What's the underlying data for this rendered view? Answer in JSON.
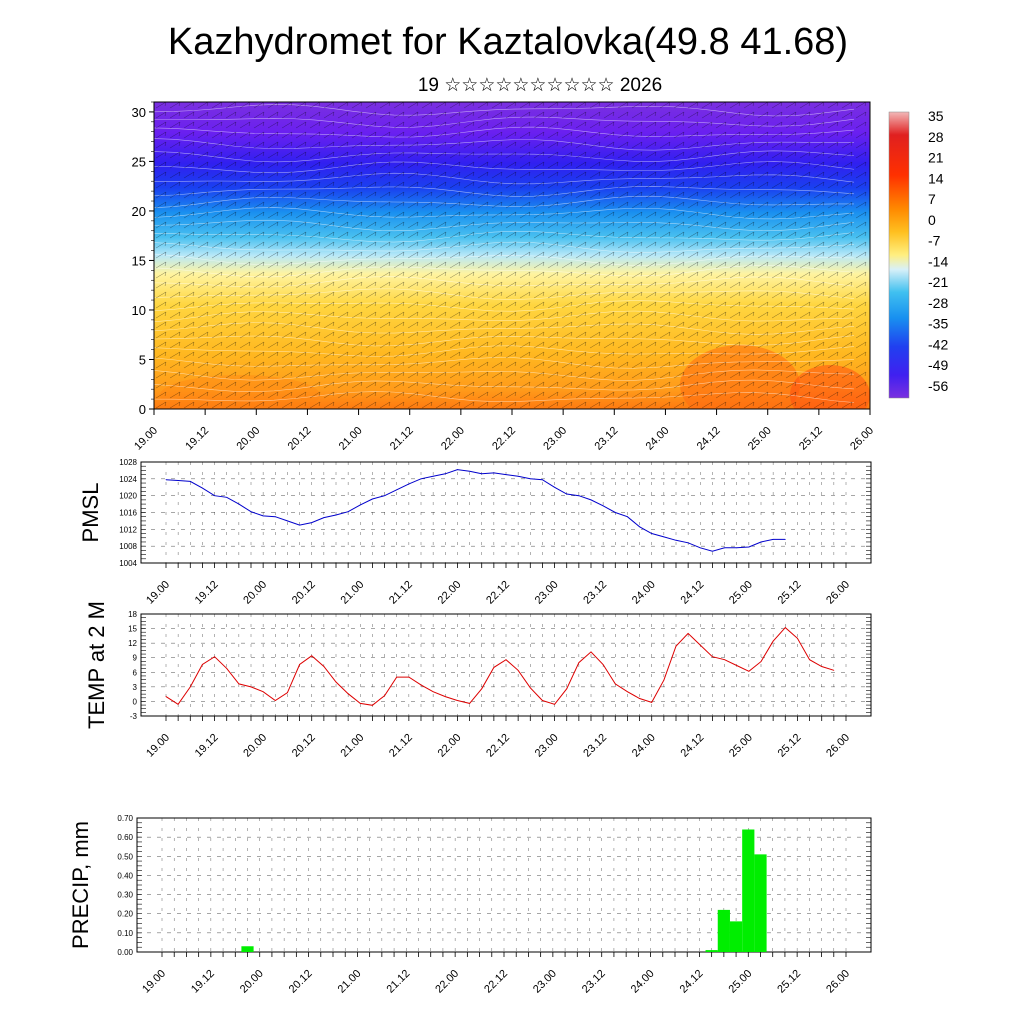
{
  "title": "Kazhydromet for Kaztalovka(49.8 41.68)",
  "subtitle": "19 ☆☆☆☆☆☆☆☆☆☆ 2026",
  "time_labels": [
    "19.00",
    "19.12",
    "20.00",
    "20.12",
    "21.00",
    "21.12",
    "22.00",
    "22.12",
    "23.00",
    "23.12",
    "24.00",
    "24.12",
    "25.00",
    "25.12",
    "26.00"
  ],
  "colors": {
    "pmsl_line": "#0000cc",
    "temp_line": "#dd0000",
    "precip_bar": "#00ee00"
  },
  "chart_data": [
    {
      "type": "heatmap",
      "name": "vertical-cross-section",
      "title": "",
      "ylabel": "",
      "y_ticks": [
        0,
        5,
        10,
        15,
        20,
        25,
        30
      ],
      "ylim": [
        0,
        31
      ],
      "x_ticks": [
        "19.00",
        "19.12",
        "20.00",
        "20.12",
        "21.00",
        "21.12",
        "22.00",
        "22.12",
        "23.00",
        "23.12",
        "24.00",
        "24.12",
        "25.00",
        "25.12",
        "26.00"
      ],
      "colorbar_labels": [
        "35",
        "28",
        "21",
        "14",
        "7",
        "0",
        "-7",
        "-14",
        "-21",
        "-28",
        "-35",
        "-42",
        "-49",
        "-56"
      ],
      "colorbar_range": [
        -63,
        42
      ],
      "description_layers": [
        {
          "level_range": [
            0,
            5
          ],
          "temp_approx": 7
        },
        {
          "level_range": [
            5,
            12
          ],
          "temp_approx": 0
        },
        {
          "level_range": [
            12,
            16
          ],
          "temp_approx": -14
        },
        {
          "level_range": [
            16,
            22
          ],
          "temp_approx": -35
        },
        {
          "level_range": [
            22,
            31
          ],
          "temp_approx": -56
        }
      ]
    },
    {
      "type": "line",
      "name": "pmsl",
      "ylabel": "PMSL",
      "ylim": [
        1004,
        1028
      ],
      "y_ticks": [
        1004,
        1008,
        1012,
        1016,
        1020,
        1024,
        1028
      ],
      "x_ticks": [
        "19.00",
        "19.12",
        "20.00",
        "20.12",
        "21.00",
        "21.12",
        "22.00",
        "22.12",
        "23.00",
        "23.12",
        "24.00",
        "24.12",
        "25.00",
        "25.12",
        "26.00"
      ],
      "x_step_hours": 3,
      "values": [
        1023.8,
        1023.6,
        1023.4,
        1021.8,
        1020.0,
        1019.6,
        1018.0,
        1016.2,
        1015.2,
        1015.0,
        1014.0,
        1013.0,
        1013.6,
        1014.8,
        1015.4,
        1016.2,
        1017.8,
        1019.2,
        1020.0,
        1021.4,
        1022.8,
        1024.0,
        1024.6,
        1025.2,
        1026.2,
        1025.8,
        1025.2,
        1025.4,
        1025.0,
        1024.6,
        1024.0,
        1023.8,
        1022.0,
        1020.4,
        1020.0,
        1019.0,
        1017.6,
        1016.0,
        1015.0,
        1012.6,
        1011.0,
        1010.2,
        1009.4,
        1008.8,
        1007.6,
        1006.8,
        1007.6,
        1007.6,
        1007.8,
        1009.0,
        1009.6,
        1009.6
      ]
    },
    {
      "type": "line",
      "name": "temp-2m",
      "ylabel": "TEMP at 2 M",
      "ylim": [
        -3,
        18
      ],
      "y_ticks": [
        -3,
        0,
        3,
        6,
        9,
        12,
        15,
        18
      ],
      "x_ticks": [
        "19.00",
        "19.12",
        "20.00",
        "20.12",
        "21.00",
        "21.12",
        "22.00",
        "22.12",
        "23.00",
        "23.12",
        "24.00",
        "24.12",
        "25.00",
        "25.12",
        "26.00"
      ],
      "x_step_hours": 3,
      "values": [
        1.0,
        -0.6,
        3.0,
        7.6,
        9.2,
        6.8,
        3.6,
        3.0,
        2.0,
        0.2,
        1.8,
        7.6,
        9.4,
        7.2,
        4.0,
        1.6,
        -0.4,
        -0.8,
        1.2,
        5.0,
        5.0,
        3.4,
        2.0,
        1.0,
        0.2,
        -0.4,
        2.6,
        7.0,
        8.6,
        6.4,
        2.8,
        0.2,
        -0.6,
        2.6,
        8.0,
        10.2,
        7.6,
        3.6,
        2.0,
        0.6,
        -0.2,
        4.4,
        11.4,
        14.0,
        11.6,
        9.2,
        8.6,
        7.4,
        6.2,
        8.2,
        12.4,
        15.2,
        13.0,
        8.6,
        7.2,
        6.4
      ]
    },
    {
      "type": "bar",
      "name": "precip",
      "ylabel": "PRECIP, mm",
      "ylim": [
        0,
        0.7
      ],
      "y_ticks": [
        "0.00",
        "0.10",
        "0.20",
        "0.30",
        "0.40",
        "0.50",
        "0.60",
        "0.70"
      ],
      "x_ticks": [
        "19.00",
        "19.12",
        "20.00",
        "20.12",
        "21.00",
        "21.12",
        "22.00",
        "22.12",
        "23.00",
        "23.12",
        "24.00",
        "24.12",
        "25.00",
        "25.12",
        "26.00"
      ],
      "x_step_hours": 3,
      "values": [
        0,
        0,
        0,
        0,
        0,
        0,
        0,
        0.03,
        0,
        0,
        0,
        0,
        0,
        0,
        0,
        0,
        0,
        0,
        0,
        0,
        0,
        0,
        0,
        0,
        0,
        0,
        0,
        0,
        0,
        0,
        0,
        0,
        0,
        0,
        0,
        0,
        0,
        0,
        0,
        0,
        0,
        0,
        0,
        0,
        0,
        0.01,
        0.22,
        0.16,
        0.64,
        0.51,
        0,
        0,
        0,
        0,
        0,
        0,
        0
      ]
    }
  ]
}
